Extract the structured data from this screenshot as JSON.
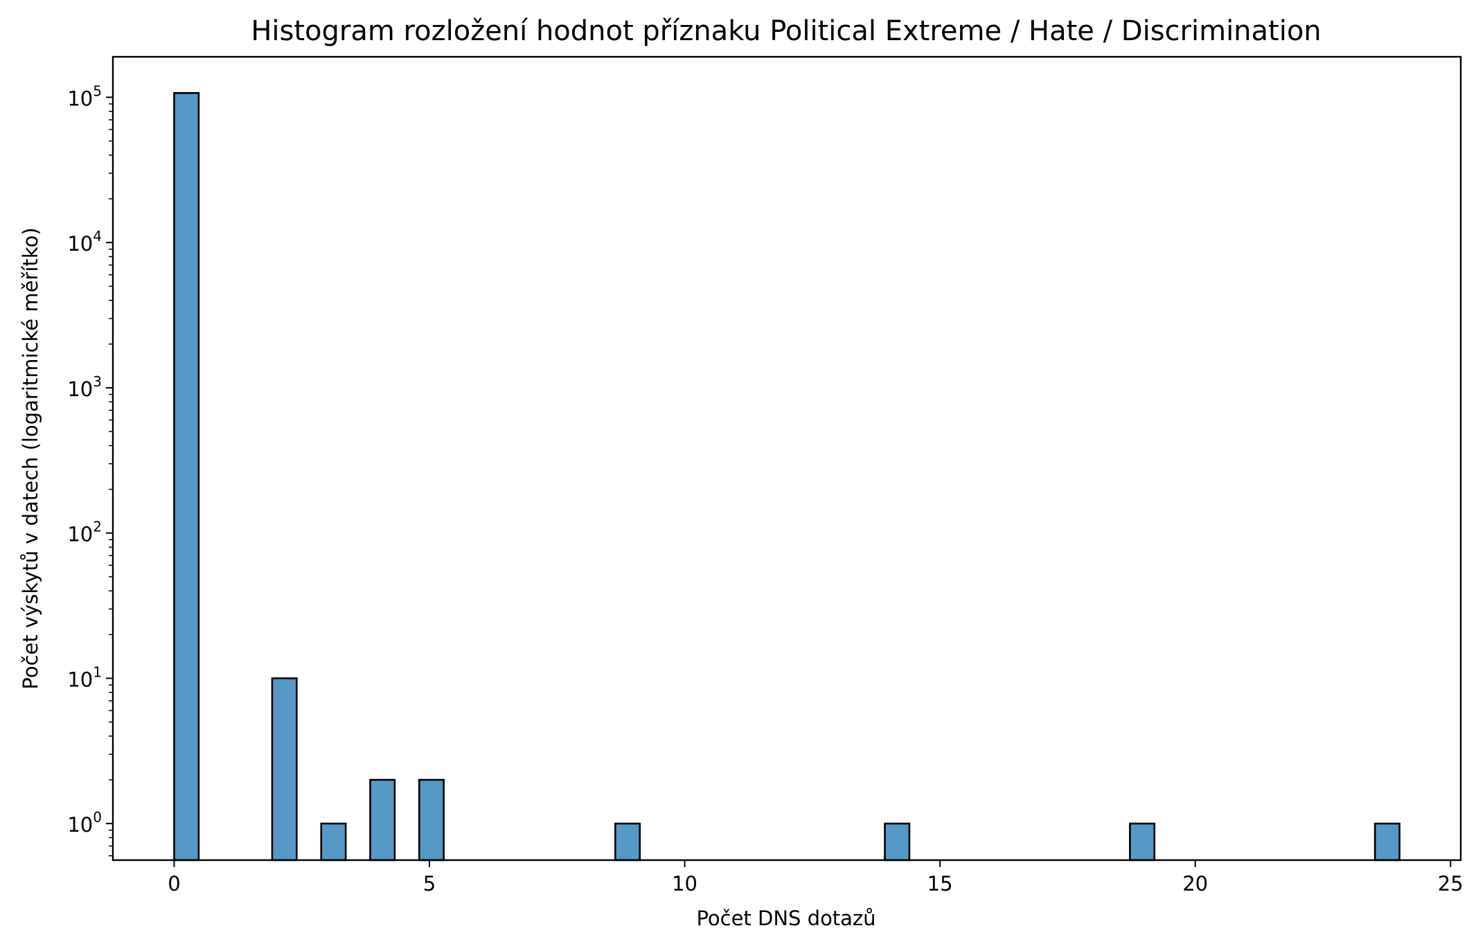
{
  "chart_data": {
    "type": "bar",
    "title": "Histogram rozložení hodnot příznaku Political Extreme / Hate / Discrimination",
    "xlabel": "Počet DNS dotazů",
    "ylabel": "Počet výskytů v datech (logaritmické měřítko)",
    "y_scale": "log",
    "xlim": [
      -1.2,
      25.2
    ],
    "ylim": [
      0.56,
      190000
    ],
    "x_ticks": [
      0,
      5,
      10,
      15,
      20,
      25
    ],
    "y_ticks": [
      {
        "value": 1,
        "base": "10",
        "exp": "0"
      },
      {
        "value": 10,
        "base": "10",
        "exp": "1"
      },
      {
        "value": 100,
        "base": "10",
        "exp": "2"
      },
      {
        "value": 1000,
        "base": "10",
        "exp": "3"
      },
      {
        "value": 10000,
        "base": "10",
        "exp": "4"
      },
      {
        "value": 100000,
        "base": "10",
        "exp": "5"
      }
    ],
    "bin_width": 0.48,
    "bars": [
      {
        "x": 0,
        "count": 107000
      },
      {
        "x": 1.92,
        "count": 10
      },
      {
        "x": 2.88,
        "count": 1
      },
      {
        "x": 3.84,
        "count": 2
      },
      {
        "x": 4.8,
        "count": 2
      },
      {
        "x": 8.64,
        "count": 1
      },
      {
        "x": 13.92,
        "count": 1
      },
      {
        "x": 18.72,
        "count": 1
      },
      {
        "x": 23.52,
        "count": 1
      }
    ],
    "bar_color": "#5799c6",
    "edge_color": "#000000",
    "grid": false
  }
}
